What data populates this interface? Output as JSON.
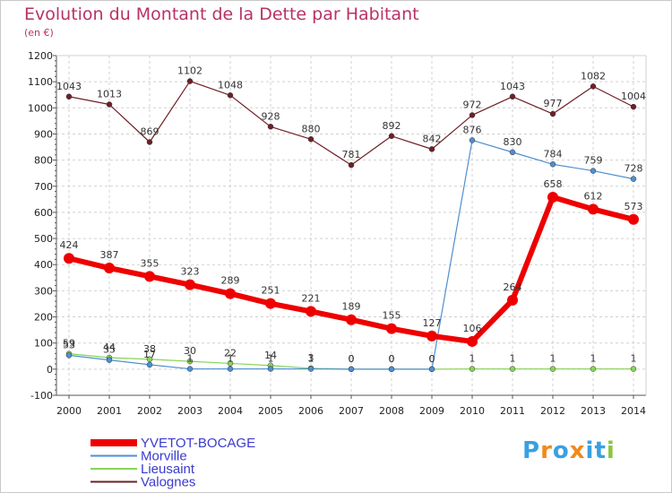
{
  "title": "Evolution du Montant de la Dette par Habitant",
  "subtitle": "(en €)",
  "logo_text": "Proxiti",
  "colors": {
    "title": "#b83266",
    "yvetot": "#ee0000",
    "morville": "#4f8fd0",
    "lieusaint": "#88d35a",
    "valognes": "#6e1f26",
    "grid": "#d0d0d0",
    "axis": "#555555",
    "legend_text": "#3a3ad0"
  },
  "chart_data": {
    "type": "line",
    "title": "Evolution du Montant de la Dette par Habitant",
    "subtitle": "(en €)",
    "xlabel": "",
    "ylabel": "",
    "x": [
      "2000",
      "2001",
      "2002",
      "2003",
      "2004",
      "2005",
      "2006",
      "2007",
      "2008",
      "2009",
      "2010",
      "2011",
      "2012",
      "2013",
      "2014"
    ],
    "ylim": [
      -100,
      1200
    ],
    "yticks": [
      -100,
      0,
      100,
      200,
      300,
      400,
      500,
      600,
      700,
      800,
      900,
      1000,
      1100,
      1200
    ],
    "grid": true,
    "legend_position": "bottom-left",
    "series": [
      {
        "name": "YVETOT-BOCAGE",
        "color": "#ee0000",
        "values": [
          424,
          387,
          355,
          323,
          289,
          251,
          221,
          189,
          155,
          127,
          106,
          264,
          658,
          612,
          573
        ],
        "labels": [
          "424",
          "387",
          "355",
          "323",
          "289",
          "251",
          "221",
          "189",
          "155",
          "127",
          "106",
          "264",
          "658",
          "612",
          "573"
        ]
      },
      {
        "name": "Morville",
        "color": "#4f8fd0",
        "values": [
          53,
          35,
          17,
          1,
          1,
          1,
          1,
          0,
          0,
          0,
          876,
          830,
          784,
          759,
          728
        ],
        "labels": [
          "53",
          "35",
          "17",
          "1",
          "1",
          "1",
          "1",
          "0",
          "0",
          "0",
          "876",
          "830",
          "784",
          "759",
          "728"
        ]
      },
      {
        "name": "Lieusaint",
        "color": "#88d35a",
        "values": [
          59,
          44,
          38,
          30,
          22,
          14,
          3,
          0,
          0,
          0,
          1,
          1,
          1,
          1,
          1
        ],
        "labels": [
          "59",
          "44",
          "38",
          "30",
          "22",
          "14",
          "3",
          "0",
          "0",
          "0",
          "1",
          "1",
          "1",
          "1",
          "1"
        ]
      },
      {
        "name": "Valognes",
        "color": "#6e1f26",
        "values": [
          1043,
          1013,
          869,
          1102,
          1048,
          928,
          880,
          781,
          892,
          842,
          972,
          1043,
          977,
          1082,
          1004
        ],
        "labels": [
          "1043",
          "1013",
          "869",
          "1102",
          "1048",
          "928",
          "880",
          "781",
          "892",
          "842",
          "972",
          "1043",
          "977",
          "1082",
          "1004"
        ]
      }
    ]
  }
}
